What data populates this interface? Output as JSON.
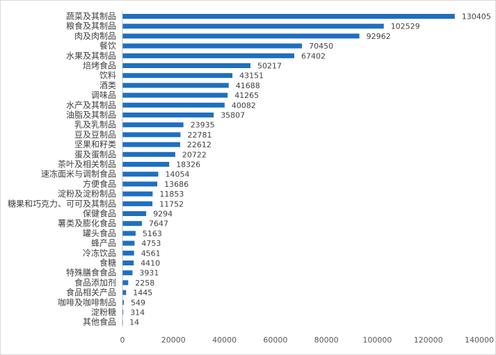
{
  "chart_data": {
    "type": "bar",
    "orientation": "horizontal",
    "categories": [
      "蔬菜及其制品",
      "粮食及其制品",
      "肉及肉制品",
      "餐饮",
      "水果及其制品",
      "焙烤食品",
      "饮料",
      "酒类",
      "调味品",
      "水产及其制品",
      "油脂及其制品",
      "乳及乳制品",
      "豆及豆制品",
      "坚果和籽类",
      "蛋及蛋制品",
      "茶叶及相关制品",
      "速冻面米与调制食品",
      "方便食品",
      "淀粉及淀粉制品",
      "糖果和巧克力、可可及其制品",
      "保健食品",
      "薯类及膨化食品",
      "罐头食品",
      "蜂产品",
      "冷冻饮品",
      "食糖",
      "特殊膳食食品",
      "食品添加剂",
      "食品相关产品",
      "咖啡及咖啡制品",
      "淀粉糖",
      "其他食品"
    ],
    "values": [
      130405,
      102529,
      92962,
      70450,
      67402,
      50217,
      43151,
      41688,
      41265,
      40082,
      35807,
      23935,
      22781,
      22612,
      20722,
      18326,
      14054,
      13686,
      11853,
      11752,
      9294,
      7647,
      5163,
      4753,
      4561,
      4410,
      3931,
      2258,
      1445,
      549,
      314,
      14
    ],
    "x_ticks": [
      "0",
      "20000",
      "40000",
      "60000",
      "80000",
      "100000",
      "120000",
      "140000"
    ],
    "xlim": [
      0,
      140000
    ],
    "bar_color": "#1f6fbf",
    "grid": false,
    "legend": false,
    "data_labels": true
  }
}
